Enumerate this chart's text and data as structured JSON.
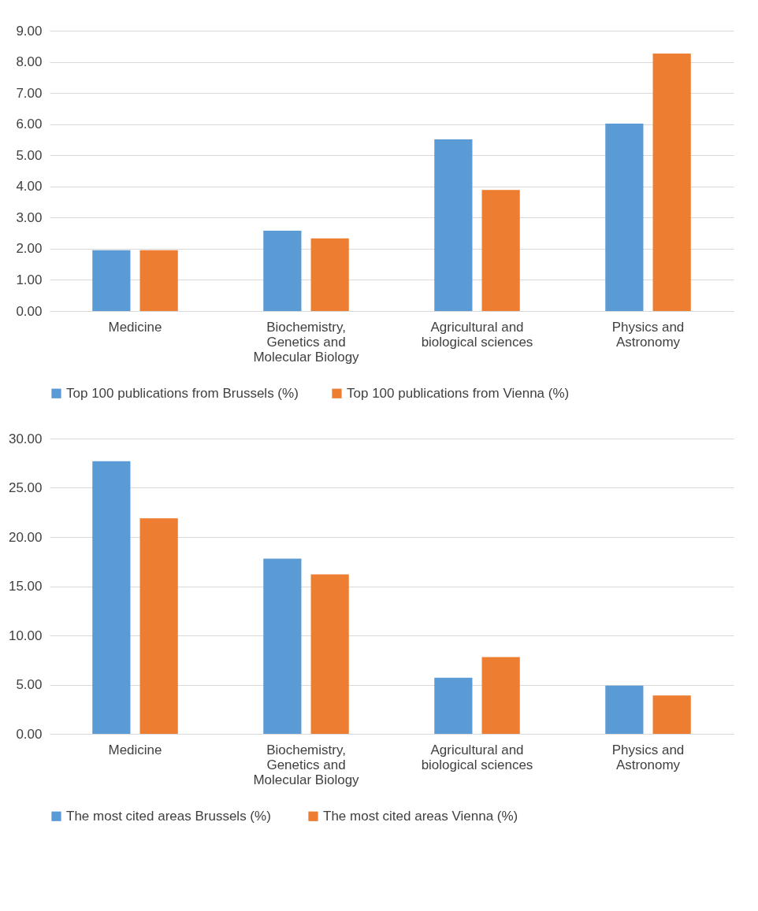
{
  "chart_data": [
    {
      "type": "bar",
      "categories": [
        "Medicine",
        "Biochemistry, Genetics and Molecular Biology",
        "Agricultural and biological sciences",
        "Physics and Astronomy"
      ],
      "series": [
        {
          "name": "Top 100 publications from Brussels (%)",
          "color": "#5b9bd5",
          "values": [
            1.95,
            2.58,
            5.51,
            6.02
          ]
        },
        {
          "name": "Top 100 publications from Vienna (%)",
          "color": "#ed7d31",
          "values": [
            1.95,
            2.33,
            3.89,
            8.27
          ]
        }
      ],
      "ylim": [
        0,
        9
      ],
      "yticks": [
        {
          "value": 0,
          "label": "0.00"
        },
        {
          "value": 1,
          "label": "1.00"
        },
        {
          "value": 2,
          "label": "2.00"
        },
        {
          "value": 3,
          "label": "3.00"
        },
        {
          "value": 4,
          "label": "4.00"
        },
        {
          "value": 5,
          "label": "5.00"
        },
        {
          "value": 6,
          "label": "6.00"
        },
        {
          "value": 7,
          "label": "7.00"
        },
        {
          "value": 8,
          "label": "8.00"
        },
        {
          "value": 9,
          "label": "9.00"
        }
      ],
      "grid": "y",
      "legend": "bottom"
    },
    {
      "type": "bar",
      "categories": [
        "Medicine",
        "Biochemistry, Genetics and Molecular Biology",
        "Agricultural and biological sciences",
        "Physics and Astronomy"
      ],
      "series": [
        {
          "name": "The most cited areas  Brussels (%)",
          "color": "#5b9bd5",
          "values": [
            27.7,
            17.8,
            5.7,
            4.9
          ]
        },
        {
          "name": "The most cited areas Vienna (%)",
          "color": "#ed7d31",
          "values": [
            21.9,
            16.2,
            7.8,
            3.9
          ]
        }
      ],
      "ylim": [
        0,
        30
      ],
      "yticks": [
        {
          "value": 0,
          "label": "0.00"
        },
        {
          "value": 5,
          "label": "5.00"
        },
        {
          "value": 10,
          "label": "10.00"
        },
        {
          "value": 15,
          "label": "15.00"
        },
        {
          "value": 20,
          "label": "20.00"
        },
        {
          "value": 25,
          "label": "25.00"
        },
        {
          "value": 30,
          "label": "30.00"
        }
      ],
      "grid": "y",
      "legend": "bottom"
    }
  ]
}
